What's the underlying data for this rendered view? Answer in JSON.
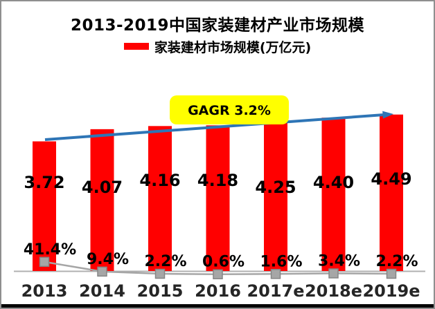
{
  "title": "2013-2019中国家装建材产业市场规模",
  "legend": {
    "label": "家装建材市场规模(万亿元)",
    "swatch_color": "#ff0000"
  },
  "annotation": {
    "text": "GAGR 3.2%",
    "bg_color": "#ffff00",
    "text_color": "#000000"
  },
  "chart_data": {
    "type": "bar",
    "title": "2013-2019中国家装建材产业市场规模",
    "categories": [
      "2013",
      "2014",
      "2015",
      "2016",
      "2017e",
      "2018e",
      "2019e"
    ],
    "series": [
      {
        "id": "market-size-bars",
        "name": "家装建材市场规模(万亿元)",
        "type": "bar",
        "color": "#ff0000",
        "values": [
          3.72,
          4.07,
          4.16,
          4.18,
          4.25,
          4.4,
          4.49
        ],
        "data_labels": [
          "3.72",
          "4.07",
          "4.16",
          "4.18",
          "4.25",
          "4.40",
          "4.49"
        ]
      },
      {
        "id": "growth-rate-line",
        "type": "line",
        "color": "#a6a6a6",
        "marker": "square",
        "marker_color": "#a6a6a6",
        "values_percent": [
          41.4,
          9.4,
          2.2,
          0.6,
          1.6,
          3.4,
          2.2
        ],
        "data_labels": [
          "41.4%",
          "9.4%",
          "2.2%",
          "0.6%",
          "1.6%",
          "3.4%",
          "2.2%"
        ]
      }
    ],
    "annotation": {
      "text": "GAGR 3.2%",
      "bg_color": "#ffff00"
    },
    "trend_arrow": {
      "color": "#2e75b6",
      "direction": "up-right"
    },
    "xlabel": "",
    "ylabel": "",
    "ylim": [
      0,
      4.6
    ],
    "grid": false,
    "y_axis_visible": false,
    "legend_position": "top",
    "axis_line_color": "#b0b0b0",
    "x_tick_color": "#262626"
  },
  "frame": {
    "border_color": "#8f8f8f",
    "bottom_bar_color": "#000000",
    "background": "#ffffff"
  }
}
